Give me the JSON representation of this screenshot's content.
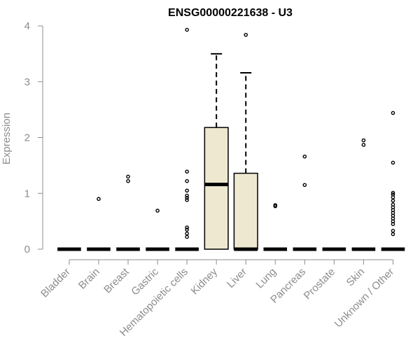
{
  "chart_data": {
    "type": "box",
    "title": "ENSG00000221638 - U3",
    "xlabel": "",
    "ylabel": "Expression",
    "ylim": [
      0,
      4
    ],
    "yticks": [
      "0",
      "1",
      "2",
      "3",
      "4"
    ],
    "grid": false,
    "legend": "none",
    "categories": [
      "Bladder",
      "Brain",
      "Breast",
      "Gastric",
      "Hematopoietic cells",
      "Kidney",
      "Liver",
      "Lung",
      "Pancreas",
      "Prostate",
      "Skin",
      "Unknown / Other"
    ],
    "boxes": [
      {
        "category": "Bladder",
        "min": 0,
        "q1": 0,
        "median": 0,
        "q3": 0,
        "max": 0,
        "outliers": []
      },
      {
        "category": "Brain",
        "min": 0,
        "q1": 0,
        "median": 0,
        "q3": 0,
        "max": 0,
        "outliers": [
          0.9
        ]
      },
      {
        "category": "Breast",
        "min": 0,
        "q1": 0,
        "median": 0,
        "q3": 0,
        "max": 0,
        "outliers": [
          1.22,
          1.3
        ]
      },
      {
        "category": "Gastric",
        "min": 0,
        "q1": 0,
        "median": 0,
        "q3": 0,
        "max": 0,
        "outliers": [
          0.69
        ]
      },
      {
        "category": "Hematopoietic cells",
        "min": 0,
        "q1": 0,
        "median": 0,
        "q3": 0,
        "max": 0,
        "outliers": [
          0.22,
          0.28,
          0.35,
          0.39,
          0.88,
          0.92,
          0.96,
          1.05,
          1.22,
          1.39,
          3.93
        ]
      },
      {
        "category": "Kidney",
        "min": 0,
        "q1": 0,
        "median": 1.16,
        "q3": 2.18,
        "max": 3.5,
        "outliers": []
      },
      {
        "category": "Liver",
        "min": 0,
        "q1": 0,
        "median": 0,
        "q3": 1.36,
        "max": 3.16,
        "outliers": [
          3.84
        ]
      },
      {
        "category": "Lung",
        "min": 0,
        "q1": 0,
        "median": 0,
        "q3": 0,
        "max": 0,
        "outliers": [
          0.77,
          0.79
        ]
      },
      {
        "category": "Pancreas",
        "min": 0,
        "q1": 0,
        "median": 0,
        "q3": 0,
        "max": 0,
        "outliers": [
          1.15,
          1.66
        ]
      },
      {
        "category": "Prostate",
        "min": 0,
        "q1": 0,
        "median": 0,
        "q3": 0,
        "max": 0,
        "outliers": []
      },
      {
        "category": "Skin",
        "min": 0,
        "q1": 0,
        "median": 0,
        "q3": 0,
        "max": 0,
        "outliers": [
          1.87,
          1.95
        ]
      },
      {
        "category": "Unknown / Other",
        "min": 0,
        "q1": 0,
        "median": 0,
        "q3": 0,
        "max": 0,
        "outliers": [
          0.27,
          0.33,
          0.45,
          0.5,
          0.55,
          0.6,
          0.65,
          0.7,
          0.75,
          0.8,
          0.87,
          0.93,
          0.98,
          1.01,
          1.55,
          2.44
        ]
      }
    ],
    "colors": {
      "box_fill": "#eee8d0",
      "box_stroke": "#000000",
      "axis": "#8c8c8c",
      "title": "#000000"
    }
  }
}
